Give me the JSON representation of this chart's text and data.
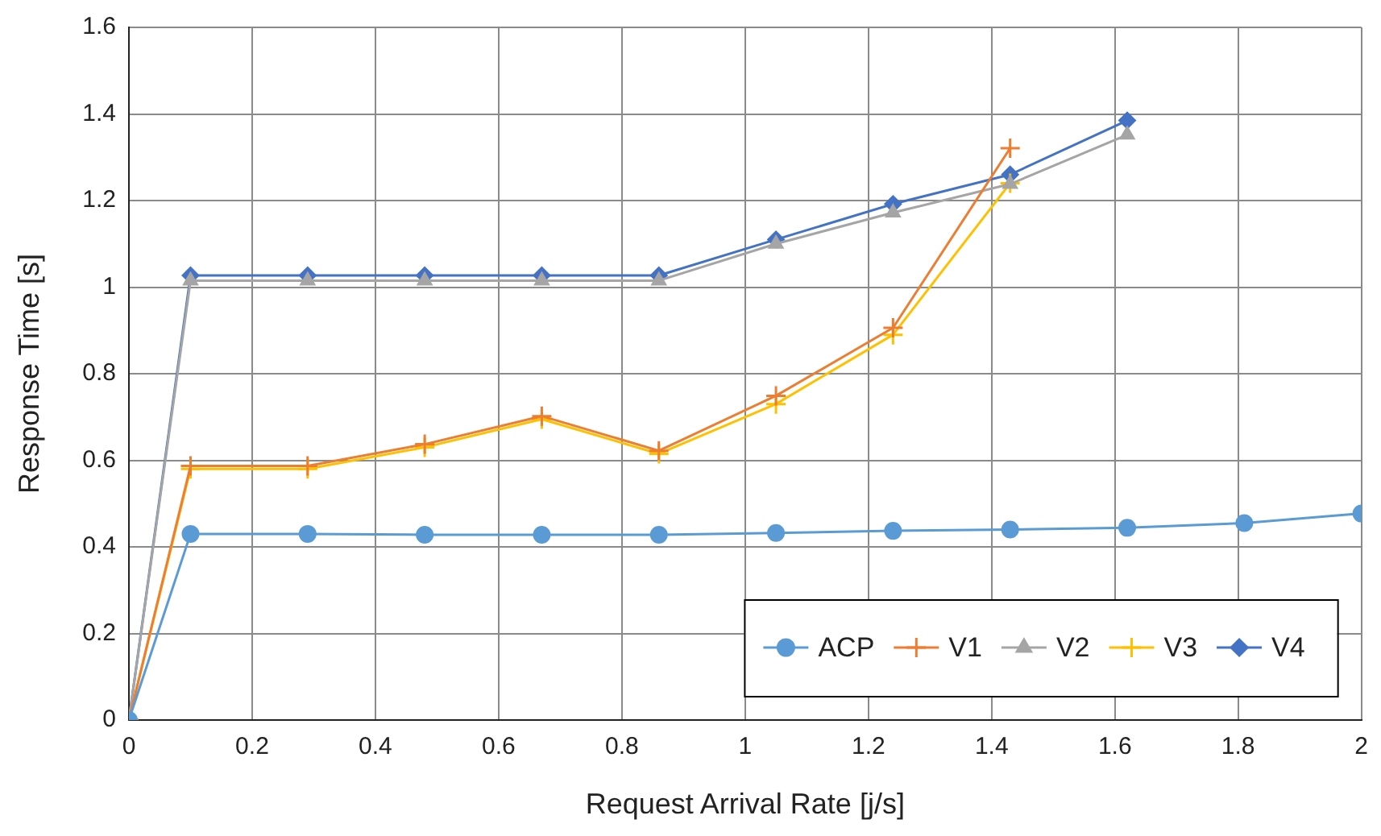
{
  "chart_data": {
    "type": "line",
    "xlabel": "Request Arrival Rate [j/s]",
    "ylabel": "Response Time [s]",
    "xlim": [
      0,
      2
    ],
    "xticks": [
      0,
      0.2,
      0.4,
      0.6,
      0.8,
      1,
      1.2,
      1.4,
      1.6,
      1.8,
      2
    ],
    "ylim": [
      0,
      1.6
    ],
    "yticks": [
      0,
      0.2,
      0.4,
      0.6,
      0.8,
      1,
      1.2,
      1.4,
      1.6
    ],
    "grid": true,
    "legend": "bottom right",
    "series": [
      {
        "name": "ACP",
        "color": "#5b9bd5",
        "marker": "circle",
        "x": [
          0,
          0.1,
          0.29,
          0.48,
          0.67,
          0.86,
          1.05,
          1.24,
          1.43,
          1.62,
          1.81,
          2
        ],
        "values": [
          0,
          0.43,
          0.43,
          0.428,
          0.428,
          0.428,
          0.432,
          0.437,
          0.44,
          0.444,
          0.455,
          0.477
        ]
      },
      {
        "name": "V1",
        "color": "#ed7d31",
        "marker": "cross",
        "x": [
          0,
          0.1,
          0.29,
          0.48,
          0.67,
          0.86,
          1.05,
          1.24,
          1.43
        ],
        "values": [
          0,
          0.587,
          0.587,
          0.637,
          0.702,
          0.622,
          0.749,
          0.906,
          1.321
        ]
      },
      {
        "name": "V2",
        "color": "#a5a5a5",
        "marker": "triangle",
        "x": [
          0,
          0.1,
          0.29,
          0.48,
          0.67,
          0.86,
          1.05,
          1.24,
          1.43,
          1.62
        ],
        "values": [
          0,
          1.015,
          1.015,
          1.015,
          1.015,
          1.015,
          1.1,
          1.172,
          1.238,
          1.352
        ]
      },
      {
        "name": "V3",
        "color": "#ffc000",
        "marker": "cross",
        "x": [
          0,
          0.1,
          0.29,
          0.48,
          0.67,
          0.86,
          1.05,
          1.24,
          1.43
        ],
        "values": [
          0,
          0.58,
          0.58,
          0.63,
          0.695,
          0.615,
          0.73,
          0.89,
          1.24
        ]
      },
      {
        "name": "V4",
        "color": "#4472c4",
        "marker": "diamond",
        "x": [
          0,
          0.1,
          0.29,
          0.48,
          0.67,
          0.86,
          1.05,
          1.24,
          1.43,
          1.62
        ],
        "values": [
          0,
          1.027,
          1.027,
          1.027,
          1.027,
          1.027,
          1.11,
          1.192,
          1.26,
          1.385
        ]
      }
    ]
  }
}
